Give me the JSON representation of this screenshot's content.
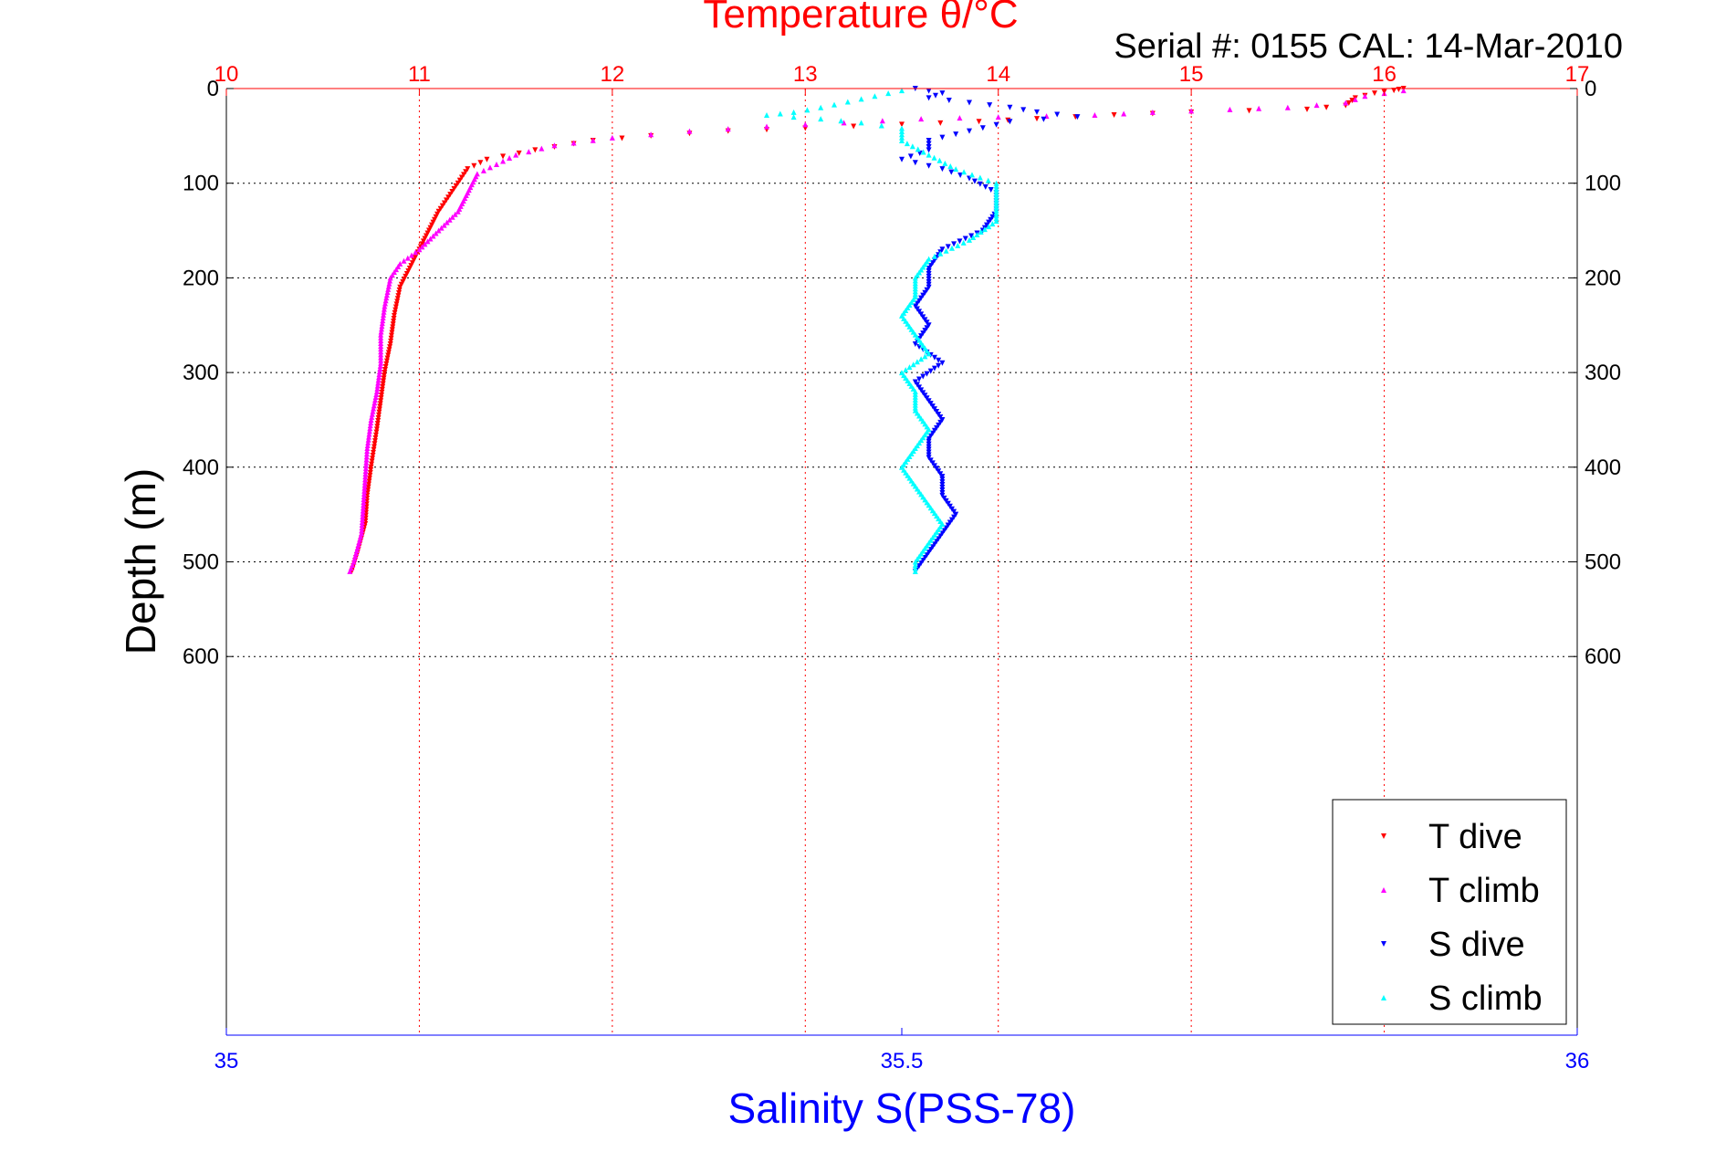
{
  "chart_data": {
    "type": "scatter",
    "title": "Temperature θ/°C",
    "subtitle": "Serial #: 0155  CAL: 14-Mar-2010",
    "ylabel": "Depth (m)",
    "xlabel_bottom": "Salinity S(PSS-78)",
    "top_axis": {
      "ticks": [
        "10",
        "11",
        "12",
        "13",
        "14",
        "15",
        "16",
        "17"
      ],
      "range": [
        10,
        17
      ]
    },
    "bottom_axis": {
      "ticks": [
        "35",
        "35.5",
        "36"
      ],
      "range": [
        35,
        36
      ]
    },
    "y_axis": {
      "ticks": [
        "0",
        "100",
        "200",
        "300",
        "400",
        "500",
        "600"
      ],
      "range": [
        0,
        1000
      ],
      "reversed": true
    },
    "grid": true,
    "legend_position": "bottom-right",
    "colors": {
      "temperature_axis": "#ff0000",
      "salinity_axis": "#0000ff",
      "t_dive": "#ff0000",
      "t_climb": "#ff00ff",
      "s_dive": "#0000ff",
      "s_climb": "#00ffff"
    },
    "series": [
      {
        "name": "T dive",
        "axis": "temperature",
        "marker": "triangle-down",
        "points": [
          [
            16.1,
            0
          ],
          [
            16.05,
            2
          ],
          [
            15.95,
            5
          ],
          [
            15.85,
            10
          ],
          [
            15.8,
            18
          ],
          [
            15.6,
            22
          ],
          [
            15.0,
            25
          ],
          [
            14.6,
            28
          ],
          [
            14.2,
            32
          ],
          [
            13.9,
            35
          ],
          [
            13.5,
            38
          ],
          [
            13.0,
            42
          ],
          [
            12.6,
            45
          ],
          [
            12.2,
            50
          ],
          [
            11.9,
            55
          ],
          [
            11.6,
            65
          ],
          [
            11.35,
            75
          ],
          [
            11.25,
            85
          ],
          [
            11.2,
            100
          ],
          [
            11.15,
            115
          ],
          [
            11.1,
            130
          ],
          [
            11.05,
            150
          ],
          [
            11.0,
            170
          ],
          [
            10.95,
            190
          ],
          [
            10.9,
            210
          ],
          [
            10.87,
            240
          ],
          [
            10.85,
            270
          ],
          [
            10.82,
            300
          ],
          [
            10.8,
            330
          ],
          [
            10.78,
            360
          ],
          [
            10.75,
            400
          ],
          [
            10.73,
            430
          ],
          [
            10.72,
            460
          ],
          [
            10.68,
            490
          ],
          [
            10.65,
            510
          ]
        ]
      },
      {
        "name": "T climb",
        "axis": "temperature",
        "marker": "triangle-up",
        "points": [
          [
            16.1,
            2
          ],
          [
            15.9,
            8
          ],
          [
            15.8,
            15
          ],
          [
            15.5,
            20
          ],
          [
            15.2,
            22
          ],
          [
            14.8,
            25
          ],
          [
            14.5,
            28
          ],
          [
            14.0,
            30
          ],
          [
            13.6,
            32
          ],
          [
            13.2,
            36
          ],
          [
            12.8,
            40
          ],
          [
            12.4,
            45
          ],
          [
            12.0,
            52
          ],
          [
            11.7,
            60
          ],
          [
            11.5,
            70
          ],
          [
            11.4,
            80
          ],
          [
            11.3,
            90
          ],
          [
            11.25,
            110
          ],
          [
            11.2,
            130
          ],
          [
            11.1,
            150
          ],
          [
            11.0,
            170
          ],
          [
            10.9,
            185
          ],
          [
            10.85,
            200
          ],
          [
            10.82,
            230
          ],
          [
            10.8,
            260
          ],
          [
            10.8,
            290
          ],
          [
            10.78,
            320
          ],
          [
            10.75,
            350
          ],
          [
            10.73,
            380
          ],
          [
            10.72,
            410
          ],
          [
            10.71,
            440
          ],
          [
            10.7,
            470
          ],
          [
            10.66,
            500
          ],
          [
            10.64,
            510
          ]
        ]
      },
      {
        "name": "S dive",
        "axis": "salinity",
        "marker": "triangle-down",
        "points": [
          [
            35.51,
            0
          ],
          [
            35.53,
            5
          ],
          [
            35.52,
            10
          ],
          [
            35.55,
            15
          ],
          [
            35.58,
            20
          ],
          [
            35.6,
            25
          ],
          [
            35.63,
            30
          ],
          [
            35.58,
            35
          ],
          [
            35.55,
            45
          ],
          [
            35.52,
            55
          ],
          [
            35.52,
            65
          ],
          [
            35.5,
            75
          ],
          [
            35.53,
            85
          ],
          [
            35.55,
            95
          ],
          [
            35.57,
            110
          ],
          [
            35.57,
            130
          ],
          [
            35.56,
            150
          ],
          [
            35.53,
            170
          ],
          [
            35.52,
            190
          ],
          [
            35.52,
            210
          ],
          [
            35.51,
            230
          ],
          [
            35.52,
            250
          ],
          [
            35.51,
            270
          ],
          [
            35.53,
            290
          ],
          [
            35.51,
            310
          ],
          [
            35.52,
            330
          ],
          [
            35.53,
            350
          ],
          [
            35.52,
            370
          ],
          [
            35.52,
            390
          ],
          [
            35.53,
            410
          ],
          [
            35.53,
            430
          ],
          [
            35.54,
            450
          ],
          [
            35.53,
            470
          ],
          [
            35.52,
            490
          ],
          [
            35.51,
            510
          ]
        ]
      },
      {
        "name": "S climb",
        "axis": "salinity",
        "marker": "triangle-up",
        "points": [
          [
            35.5,
            2
          ],
          [
            35.48,
            8
          ],
          [
            35.46,
            14
          ],
          [
            35.44,
            20
          ],
          [
            35.42,
            25
          ],
          [
            35.4,
            28
          ],
          [
            35.44,
            32
          ],
          [
            35.47,
            36
          ],
          [
            35.5,
            42
          ],
          [
            35.5,
            55
          ],
          [
            35.52,
            70
          ],
          [
            35.54,
            85
          ],
          [
            35.57,
            100
          ],
          [
            35.57,
            120
          ],
          [
            35.57,
            140
          ],
          [
            35.55,
            160
          ],
          [
            35.52,
            180
          ],
          [
            35.51,
            200
          ],
          [
            35.51,
            220
          ],
          [
            35.5,
            240
          ],
          [
            35.51,
            260
          ],
          [
            35.52,
            280
          ],
          [
            35.5,
            300
          ],
          [
            35.51,
            320
          ],
          [
            35.51,
            340
          ],
          [
            35.52,
            360
          ],
          [
            35.51,
            380
          ],
          [
            35.5,
            400
          ],
          [
            35.51,
            420
          ],
          [
            35.52,
            440
          ],
          [
            35.53,
            460
          ],
          [
            35.52,
            480
          ],
          [
            35.51,
            500
          ],
          [
            35.51,
            510
          ]
        ]
      }
    ]
  }
}
